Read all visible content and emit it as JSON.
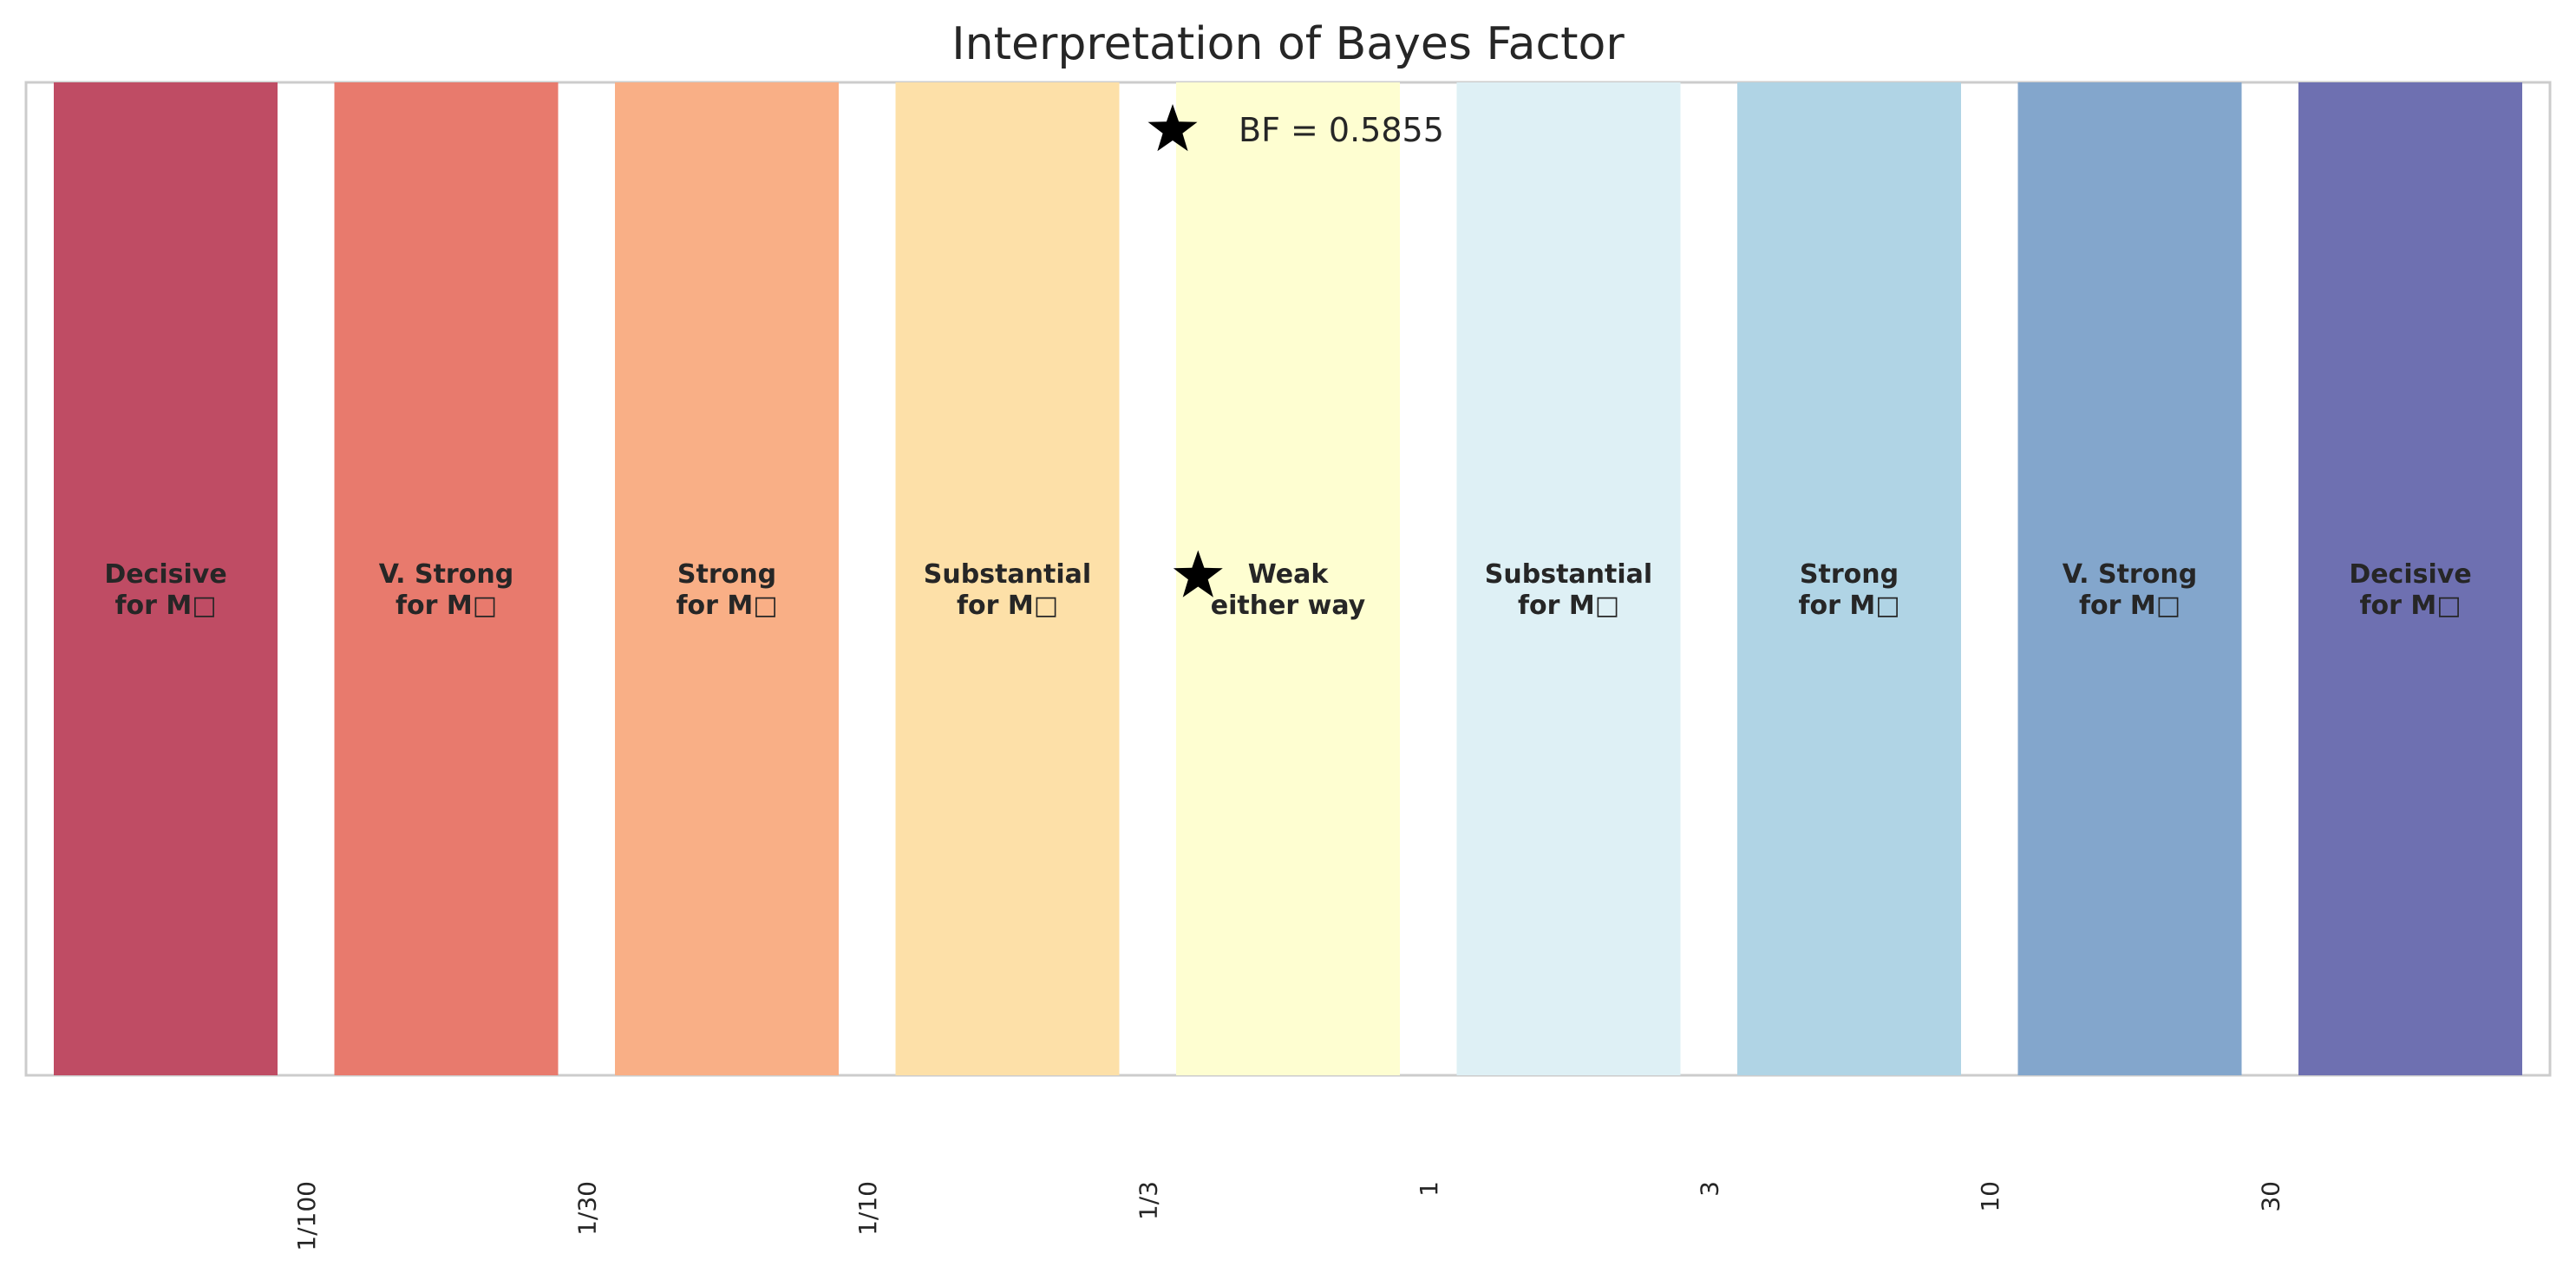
{
  "chart_data": {
    "type": "bar",
    "title": "Interpretation of Bayes Factor",
    "xlabel": "",
    "ylabel": "",
    "x_tick_labels": [
      "1/100",
      "1/30",
      "1/10",
      "1/3",
      "1",
      "3",
      "10",
      "30"
    ],
    "categories": [
      "Decisive\nfor M□",
      "V. Strong\nfor M□",
      "Strong\nfor M□",
      "Substantial\nfor M□",
      "Weak\neither way",
      "Substantial\nfor M□",
      "Strong\nfor M□",
      "V. Strong\nfor M□",
      "Decisive\nfor M□"
    ],
    "values": [
      1,
      1,
      1,
      1,
      1,
      1,
      1,
      1,
      1
    ],
    "ylim": [
      0,
      1
    ],
    "colors": [
      "#bf4c64",
      "#e87a6d",
      "#f9af86",
      "#fde0a8",
      "#fefed1",
      "#def0f5",
      "#b0d4e5",
      "#83a6cc",
      "#6e70b1"
    ],
    "bayes_factor": {
      "value": 0.5855,
      "label": "BF = 0.5855",
      "marker": "star"
    },
    "grid": false,
    "legend": "upper-center"
  }
}
